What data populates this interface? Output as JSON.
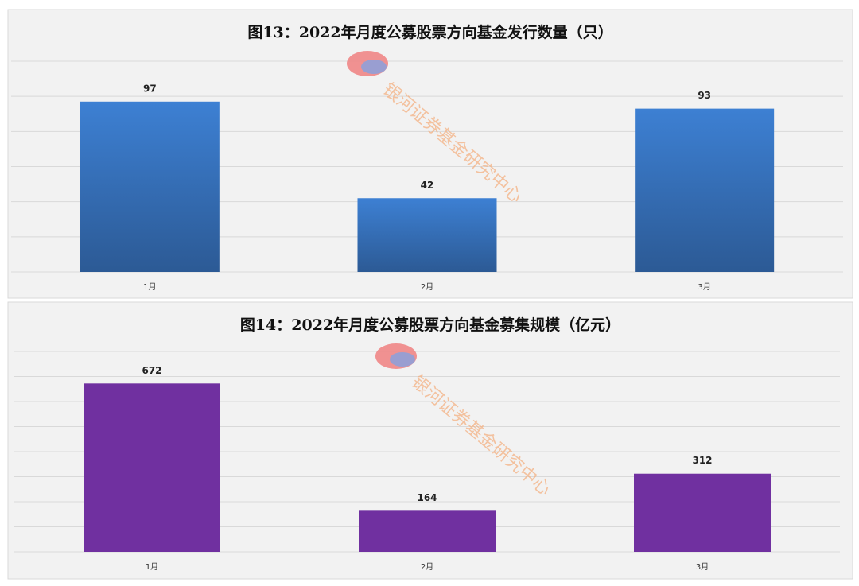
{
  "chart_data": [
    {
      "type": "bar",
      "title": "图13：2022年月度公募股票方向基金发行数量（只）",
      "categories": [
        "1月",
        "2月",
        "3月"
      ],
      "values": [
        97,
        42,
        93
      ],
      "color": "#3a78c8",
      "ylim": [
        0,
        120
      ],
      "yticks": [
        0,
        20,
        40,
        60,
        80,
        100,
        120
      ],
      "grid": true,
      "tick_labels": false,
      "watermark": "银河证券基金研究中心"
    },
    {
      "type": "bar",
      "title": "图14：2022年月度公募股票方向基金募集规模（亿元）",
      "categories": [
        "1月",
        "2月",
        "3月"
      ],
      "values": [
        672,
        164,
        312
      ],
      "color": "#7030a0",
      "ylim": [
        0,
        800
      ],
      "yticks": [
        0,
        100,
        200,
        300,
        400,
        500,
        600,
        700,
        800
      ],
      "grid": true,
      "tick_labels": false,
      "watermark": "银河证券基金研究中心"
    }
  ]
}
